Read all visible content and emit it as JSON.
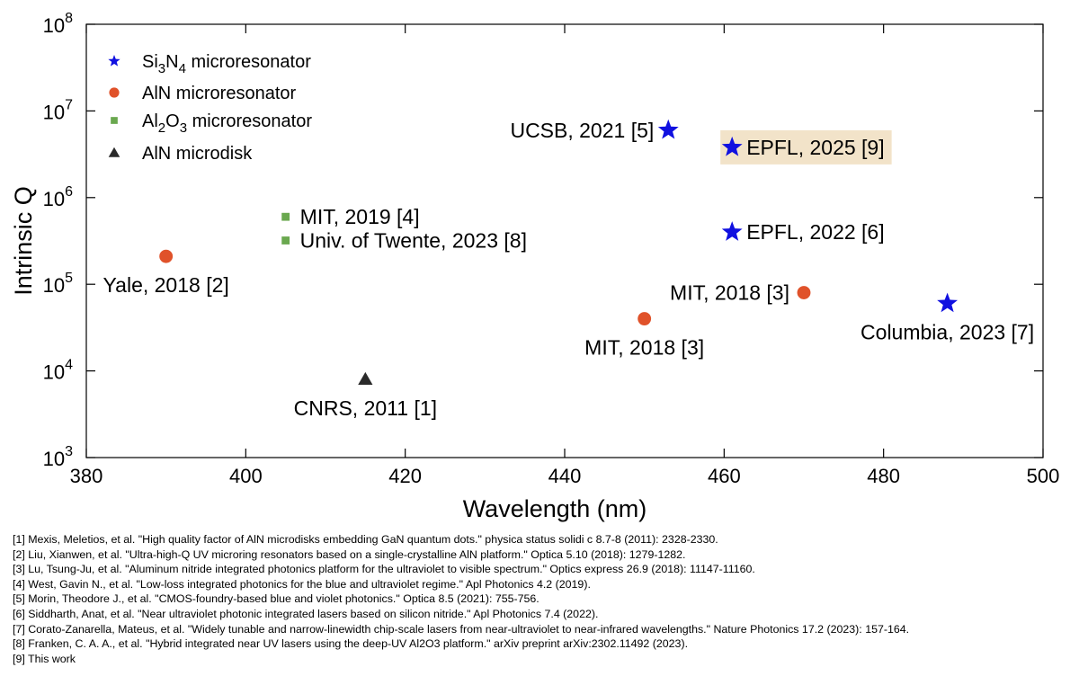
{
  "chart_data": {
    "type": "scatter",
    "xlabel": "Wavelength (nm)",
    "ylabel": "Intrinsic Q",
    "xlim": [
      380,
      500
    ],
    "ylim": [
      1000,
      100000000
    ],
    "yscale": "log",
    "grid": false,
    "legend_position": "top-left",
    "x_ticks": [
      "380",
      "400",
      "420",
      "440",
      "460",
      "480",
      "500"
    ],
    "y_ticks": [
      {
        "base": "10",
        "exp": "3"
      },
      {
        "base": "10",
        "exp": "4"
      },
      {
        "base": "10",
        "exp": "5"
      },
      {
        "base": "10",
        "exp": "6"
      },
      {
        "base": "10",
        "exp": "7"
      },
      {
        "base": "10",
        "exp": "8"
      }
    ],
    "legend": [
      {
        "key": "si3n4",
        "parts": [
          [
            "Si",
            ""
          ],
          [
            "3",
            "sub"
          ],
          [
            "N",
            ""
          ],
          [
            "4",
            "sub"
          ],
          [
            " microresonator",
            ""
          ]
        ],
        "marker": "star",
        "color": "#1010e0"
      },
      {
        "key": "aln",
        "parts": [
          [
            "AlN microresonator",
            ""
          ]
        ],
        "marker": "circle",
        "color": "#e0522a"
      },
      {
        "key": "al2o3",
        "parts": [
          [
            "Al",
            ""
          ],
          [
            "2",
            "sub"
          ],
          [
            "O",
            ""
          ],
          [
            "3",
            "sub"
          ],
          [
            " microresonator",
            ""
          ]
        ],
        "marker": "square",
        "color": "#6aa84f"
      },
      {
        "key": "alndisk",
        "parts": [
          [
            "AlN microdisk",
            ""
          ]
        ],
        "marker": "triangle",
        "color": "#2a2a2a"
      }
    ],
    "series": [
      {
        "key": "si3n4",
        "points": [
          {
            "x": 453,
            "y": 6000000,
            "label": "UCSB, 2021 [5]",
            "pos": "left"
          },
          {
            "x": 461,
            "y": 3800000,
            "label": "EPFL, 2025 [9]",
            "pos": "right",
            "highlight": true
          },
          {
            "x": 461,
            "y": 400000,
            "label": "EPFL, 2022 [6]",
            "pos": "right"
          },
          {
            "x": 488,
            "y": 60000,
            "label": "Columbia, 2023 [7]",
            "pos": "below"
          }
        ]
      },
      {
        "key": "aln",
        "points": [
          {
            "x": 390,
            "y": 210000,
            "label": "Yale, 2018 [2]",
            "pos": "below"
          },
          {
            "x": 450,
            "y": 40000,
            "label": "MIT, 2018 [3]",
            "pos": "below"
          },
          {
            "x": 470,
            "y": 80000,
            "label": "MIT, 2018 [3]",
            "pos": "left"
          }
        ]
      },
      {
        "key": "al2o3",
        "points": [
          {
            "x": 405,
            "y": 600000,
            "label": "MIT, 2019 [4]",
            "pos": "right"
          },
          {
            "x": 405,
            "y": 320000,
            "label": "Univ. of Twente, 2023 [8]",
            "pos": "right"
          }
        ]
      },
      {
        "key": "alndisk",
        "points": [
          {
            "x": 415,
            "y": 8000,
            "label": "CNRS, 2011 [1]",
            "pos": "below"
          }
        ]
      }
    ],
    "highlight_color": "#f2e3c9"
  },
  "references": [
    "[1] Mexis, Meletios, et al. \"High quality factor of AlN microdisks embedding GaN quantum dots.\" physica status solidi c 8.7-8 (2011): 2328-2330.",
    "[2] Liu, Xianwen, et al. \"Ultra-high-Q UV microring resonators based on a single-crystalline AlN platform.\" Optica 5.10 (2018): 1279-1282.",
    "[3] Lu, Tsung-Ju, et al. \"Aluminum nitride integrated photonics platform for the ultraviolet to visible spectrum.\" Optics express 26.9 (2018): 11147-11160.",
    "[4] West, Gavin N., et al. \"Low-loss integrated photonics for the blue and ultraviolet regime.\" Apl Photonics 4.2 (2019).",
    "[5] Morin, Theodore J., et al. \"CMOS-foundry-based blue and violet photonics.\" Optica 8.5 (2021): 755-756.",
    "[6] Siddharth, Anat, et al. \"Near ultraviolet photonic integrated lasers based on silicon nitride.\" Apl Photonics 7.4 (2022).",
    "[7] Corato-Zanarella, Mateus, et al. \"Widely tunable and narrow-linewidth chip-scale lasers from near-ultraviolet to near-infrared wavelengths.\" Nature Photonics 17.2 (2023): 157-164.",
    "[8] Franken, C. A. A., et al. \"Hybrid integrated near UV lasers using the deep-UV Al2O3 platform.\" arXiv preprint arXiv:2302.11492 (2023).",
    "[9] This work"
  ]
}
